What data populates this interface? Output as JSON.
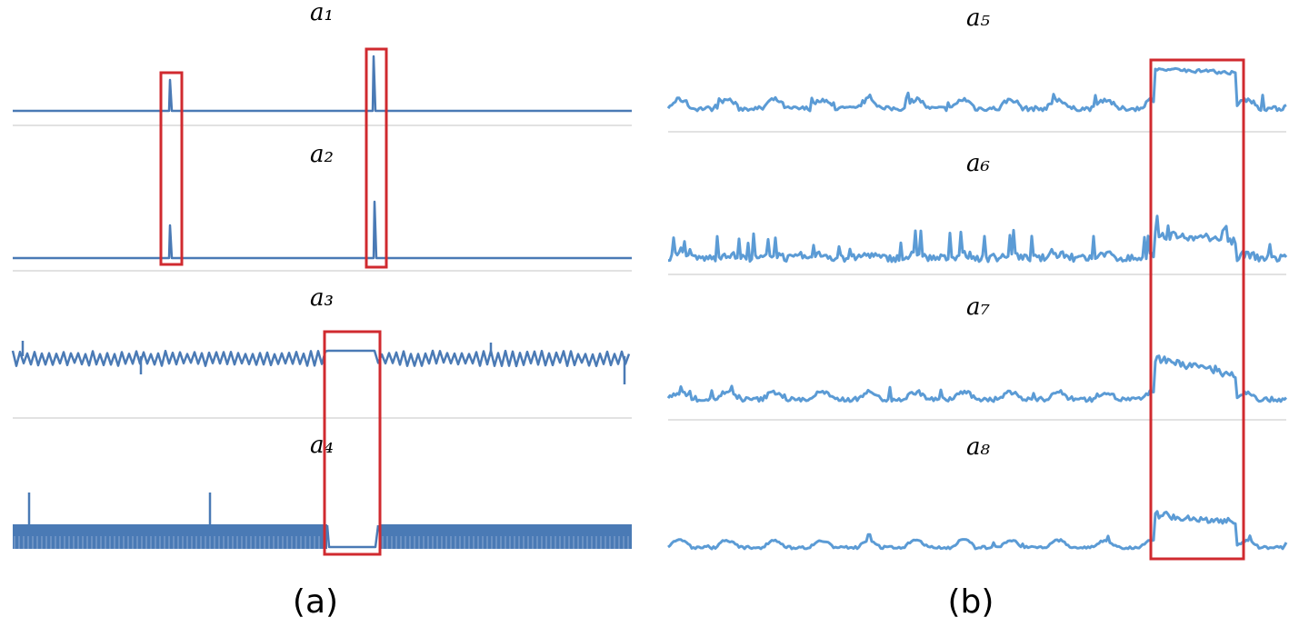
{
  "panels": [
    {
      "caption": "(a)",
      "labels": [
        "a₁",
        "a₂",
        "a₃",
        "a₄"
      ]
    },
    {
      "caption": "(b)",
      "labels": [
        "a₅",
        "a₆",
        "a₇",
        "a₈"
      ]
    }
  ]
}
